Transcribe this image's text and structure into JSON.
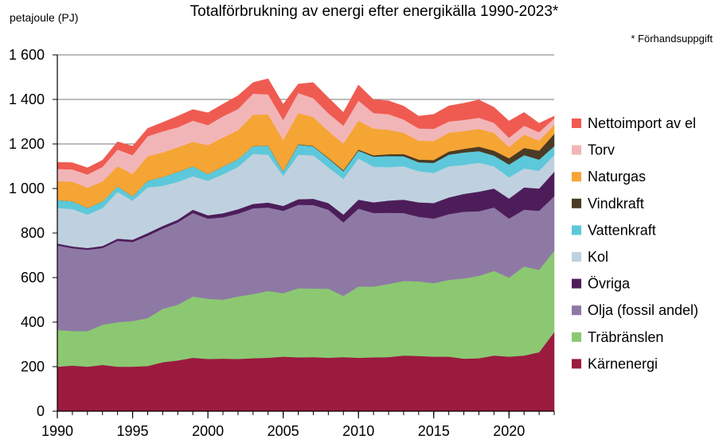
{
  "chart_data": {
    "type": "area",
    "stacked": true,
    "title": "Totalförbrukning av energi efter energikälla 1990-2023*",
    "ylabel": "petajoule (PJ)",
    "xlabel": "",
    "note": "* Förhandsuppgift",
    "ylim": [
      0,
      1600
    ],
    "yticks": [
      0,
      200,
      400,
      600,
      800,
      1000,
      1200,
      1400,
      1600
    ],
    "ytick_labels": [
      "0",
      "200",
      "400",
      "600",
      "800",
      "1 000",
      "1 200",
      "1 400",
      "1 600"
    ],
    "xlim": [
      1990,
      2023
    ],
    "xticks": [
      1990,
      1995,
      2000,
      2005,
      2010,
      2015,
      2020
    ],
    "grid": "horizontal",
    "legend_position": "right",
    "x": [
      1990,
      1991,
      1992,
      1993,
      1994,
      1995,
      1996,
      1997,
      1998,
      1999,
      2000,
      2001,
      2002,
      2003,
      2004,
      2005,
      2006,
      2007,
      2008,
      2009,
      2010,
      2011,
      2012,
      2013,
      2014,
      2015,
      2016,
      2017,
      2018,
      2019,
      2020,
      2021,
      2022,
      2023
    ],
    "series": [
      {
        "name": "Kärnenergi",
        "color": "#9b1b3f",
        "values": [
          200,
          205,
          200,
          208,
          200,
          200,
          203,
          220,
          228,
          240,
          235,
          236,
          235,
          238,
          240,
          245,
          242,
          243,
          240,
          243,
          240,
          242,
          243,
          250,
          248,
          245,
          245,
          236,
          238,
          250,
          245,
          250,
          265,
          355
        ]
      },
      {
        "name": "Träbränslen",
        "color": "#8cc872",
        "values": [
          165,
          155,
          160,
          180,
          200,
          205,
          215,
          240,
          250,
          275,
          270,
          265,
          280,
          288,
          300,
          285,
          310,
          308,
          310,
          275,
          320,
          318,
          328,
          335,
          335,
          330,
          345,
          360,
          370,
          380,
          355,
          400,
          370,
          365
        ]
      },
      {
        "name": "Olja (fossil andel)",
        "color": "#8e79a5",
        "values": [
          380,
          372,
          365,
          345,
          365,
          355,
          370,
          360,
          370,
          375,
          360,
          370,
          372,
          385,
          375,
          370,
          375,
          375,
          355,
          330,
          350,
          330,
          320,
          305,
          290,
          290,
          295,
          300,
          290,
          285,
          265,
          255,
          265,
          245
        ]
      },
      {
        "name": "Övriga",
        "color": "#4d1d5a",
        "values": [
          8,
          8,
          8,
          9,
          10,
          10,
          12,
          12,
          12,
          15,
          15,
          18,
          20,
          20,
          22,
          22,
          25,
          28,
          30,
          35,
          40,
          48,
          55,
          60,
          65,
          70,
          75,
          80,
          88,
          85,
          90,
          100,
          100,
          110
        ]
      },
      {
        "name": "Kol",
        "color": "#bfd1df",
        "values": [
          160,
          168,
          150,
          170,
          210,
          175,
          205,
          180,
          170,
          150,
          155,
          175,
          190,
          225,
          215,
          135,
          200,
          195,
          160,
          160,
          185,
          160,
          150,
          150,
          140,
          135,
          140,
          130,
          130,
          100,
          95,
          85,
          80,
          75
        ]
      },
      {
        "name": "Vattenkraft",
        "color": "#5dc8da",
        "values": [
          35,
          35,
          30,
          30,
          25,
          20,
          30,
          40,
          45,
          45,
          30,
          35,
          35,
          35,
          40,
          20,
          45,
          40,
          40,
          35,
          35,
          45,
          50,
          45,
          40,
          45,
          52,
          56,
          52,
          48,
          58,
          60,
          50,
          40
        ]
      },
      {
        "name": "Vindkraft",
        "color": "#4b3a24",
        "values": [
          0,
          0,
          0,
          0,
          0,
          0,
          0,
          0,
          0,
          0,
          0,
          0,
          0,
          0,
          1,
          1,
          2,
          2,
          3,
          4,
          5,
          6,
          8,
          10,
          12,
          13,
          14,
          16,
          20,
          22,
          28,
          32,
          40,
          55
        ]
      },
      {
        "name": "Naturgas",
        "color": "#f5a534",
        "values": [
          85,
          88,
          90,
          90,
          90,
          100,
          110,
          110,
          110,
          110,
          130,
          130,
          130,
          140,
          140,
          140,
          140,
          130,
          120,
          120,
          130,
          120,
          110,
          95,
          85,
          85,
          85,
          80,
          80,
          80,
          50,
          60,
          45,
          40
        ]
      },
      {
        "name": "Torv",
        "color": "#f2b5b7",
        "values": [
          55,
          55,
          60,
          65,
          75,
          85,
          90,
          95,
          90,
          95,
          90,
          95,
          95,
          95,
          90,
          90,
          90,
          85,
          80,
          80,
          90,
          70,
          70,
          60,
          55,
          55,
          50,
          50,
          50,
          45,
          42,
          40,
          38,
          30
        ]
      },
      {
        "name": "Nettoimport av el",
        "color": "#ef5b51",
        "values": [
          30,
          30,
          30,
          30,
          35,
          40,
          35,
          40,
          50,
          50,
          55,
          55,
          60,
          50,
          70,
          70,
          40,
          70,
          70,
          60,
          70,
          60,
          60,
          60,
          55,
          65,
          70,
          75,
          80,
          70,
          75,
          60,
          40,
          10
        ]
      }
    ]
  }
}
